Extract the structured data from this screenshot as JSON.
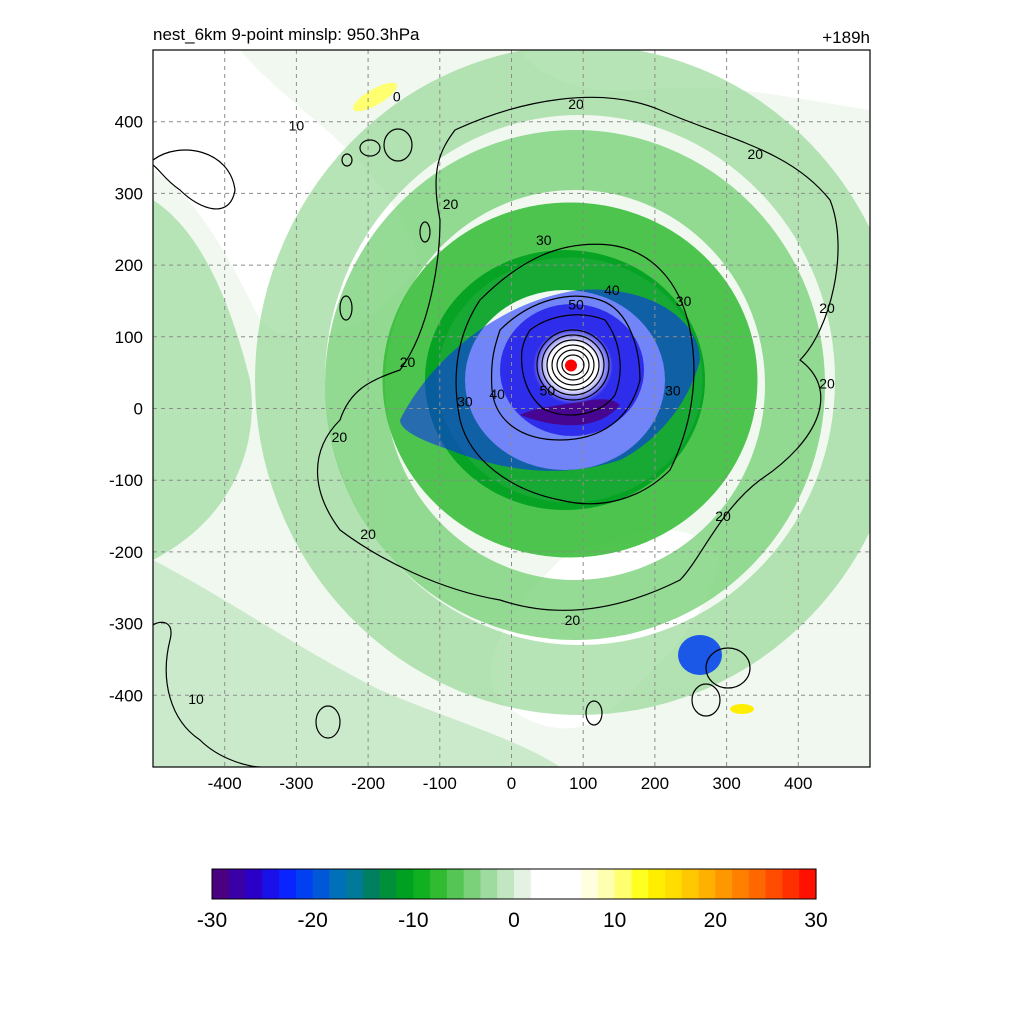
{
  "title_left": "nest_6km  9-point minslp: 950.3hPa",
  "title_right": "+189h",
  "chart_data": {
    "type": "heatmap",
    "xlim": [
      -500,
      500
    ],
    "ylim": [
      -500,
      500
    ],
    "x_ticks": [
      -400,
      -300,
      -200,
      -100,
      0,
      100,
      200,
      300,
      400
    ],
    "y_ticks": [
      400,
      300,
      200,
      100,
      0,
      -100,
      -200,
      -300,
      -400
    ],
    "x_tick_labels": [
      "-400",
      "-300",
      "-200",
      "-100",
      "0",
      "100",
      "200",
      "300",
      "400"
    ],
    "y_tick_labels": [
      "400",
      "300",
      "200",
      "100",
      "0",
      "-100",
      "-200",
      "-300",
      "-400"
    ],
    "grid": true,
    "storm_center": {
      "x": 83,
      "y": 60
    },
    "colorbar": {
      "range": [
        -30,
        30
      ],
      "ticks": [
        "-30",
        "-20",
        "-10",
        "0",
        "10",
        "20",
        "30"
      ],
      "colors": [
        "#4b0082",
        "#3a00a6",
        "#2a00c8",
        "#1a10e8",
        "#0a24ff",
        "#0040f0",
        "#0058d8",
        "#0070b8",
        "#007a98",
        "#008060",
        "#00903a",
        "#00a020",
        "#10b020",
        "#30bb30",
        "#55c655",
        "#7ad17a",
        "#9edb9e",
        "#c2e6c2",
        "#e4f2e4",
        "#ffffff",
        "#ffffff",
        "#ffffff",
        "#ffffe0",
        "#ffffb0",
        "#ffff70",
        "#ffff20",
        "#ffee00",
        "#ffdd00",
        "#ffc800",
        "#ffb000",
        "#ff9800",
        "#ff8000",
        "#ff6800",
        "#ff4c00",
        "#ff3000",
        "#ff1000"
      ]
    },
    "contour_labels": [
      {
        "x": 90,
        "y": 425,
        "text": "20"
      },
      {
        "x": 340,
        "y": 355,
        "text": "20"
      },
      {
        "x": -85,
        "y": 285,
        "text": "20"
      },
      {
        "x": 45,
        "y": 235,
        "text": "30"
      },
      {
        "x": 240,
        "y": 150,
        "text": "30"
      },
      {
        "x": 440,
        "y": 140,
        "text": "20"
      },
      {
        "x": 440,
        "y": 35,
        "text": "20"
      },
      {
        "x": 90,
        "y": 145,
        "text": "50"
      },
      {
        "x": 140,
        "y": 165,
        "text": "40"
      },
      {
        "x": -145,
        "y": 65,
        "text": "20"
      },
      {
        "x": -65,
        "y": 10,
        "text": "30"
      },
      {
        "x": -20,
        "y": 20,
        "text": "40"
      },
      {
        "x": 50,
        "y": 25,
        "text": "50"
      },
      {
        "x": 225,
        "y": 25,
        "text": "30"
      },
      {
        "x": -240,
        "y": -40,
        "text": "20"
      },
      {
        "x": 295,
        "y": -150,
        "text": "20"
      },
      {
        "x": -200,
        "y": -175,
        "text": "20"
      },
      {
        "x": 85,
        "y": -295,
        "text": "20"
      },
      {
        "x": -300,
        "y": 395,
        "text": "10"
      },
      {
        "x": -440,
        "y": -405,
        "text": "10"
      },
      {
        "x": -160,
        "y": 435,
        "text": "0"
      }
    ]
  }
}
